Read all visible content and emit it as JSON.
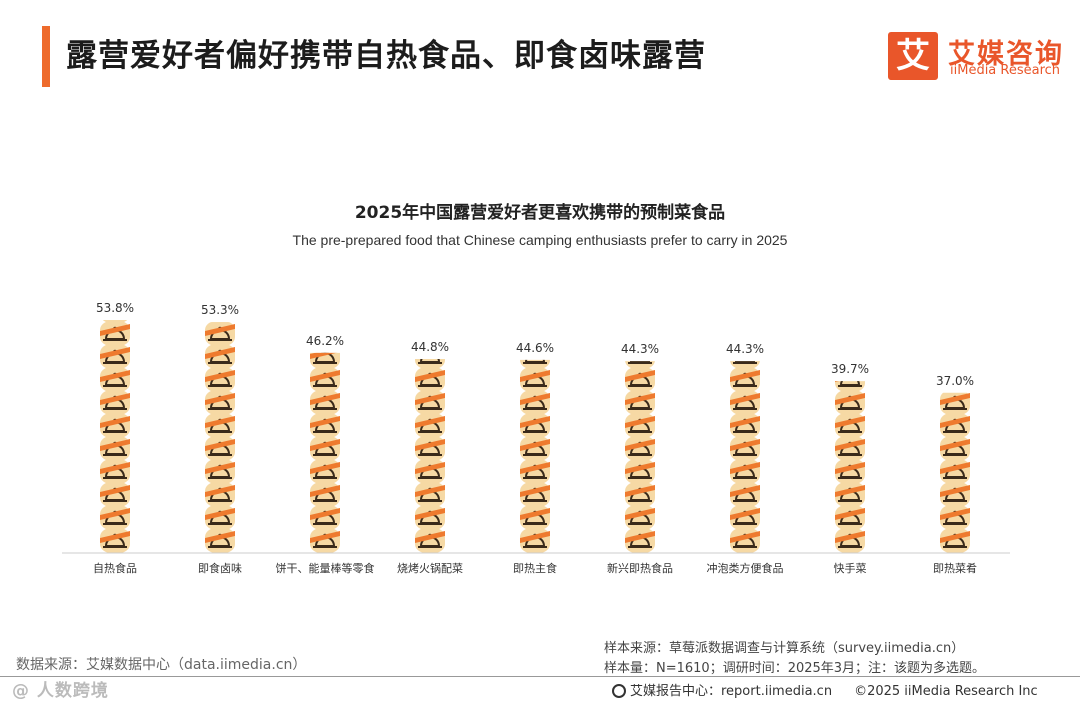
{
  "header": {
    "title": "露营爱好者偏好携带自热食品、即食卤味露营",
    "brand_logo_char": "艾",
    "brand_name_cn": "艾媒咨询",
    "brand_name_en": "iiMedia Research",
    "accent_color": "#ee6b2c"
  },
  "chart_data": {
    "type": "bar",
    "title": "2025年中国露营爱好者更喜欢携带的预制菜食品",
    "subtitle": "The pre-prepared food that Chinese camping enthusiasts prefer to carry in 2025",
    "categories": [
      "自热食品",
      "即食卤味",
      "饼干、能量棒等零食",
      "烧烤火锅配菜",
      "即热主食",
      "新兴即热食品",
      "冲泡类方便食品",
      "快手菜",
      "即热菜肴"
    ],
    "values": [
      53.8,
      53.3,
      46.2,
      44.8,
      44.6,
      44.3,
      44.3,
      39.7,
      37.0
    ],
    "value_labels": [
      "53.8%",
      "53.3%",
      "46.2%",
      "44.8%",
      "44.6%",
      "44.3%",
      "44.3%",
      "39.7%",
      "37.0%"
    ],
    "unit": "%",
    "ylim": [
      0,
      53.8
    ],
    "grid": false,
    "legend": "none",
    "bar_style": "stacked food-cloche icons",
    "colors": {
      "icon_fill": "#f6d9a4",
      "icon_band": "#ee7a2e",
      "icon_outline": "#3a2a1a",
      "axis": "#cccccc"
    }
  },
  "footer": {
    "source_left": "数据来源：艾媒数据中心（data.iimedia.cn）",
    "sample_source": "样本来源：草莓派数据调查与计算系统（survey.iimedia.cn）",
    "sample_info": "样本量：N=1610；调研时间：2025年3月；注：该题为多选题。",
    "report_center": "艾媒报告中心：report.iimedia.cn",
    "copyright": "©2025  iiMedia Research  Inc",
    "watermark": "@ 人数跨境"
  }
}
